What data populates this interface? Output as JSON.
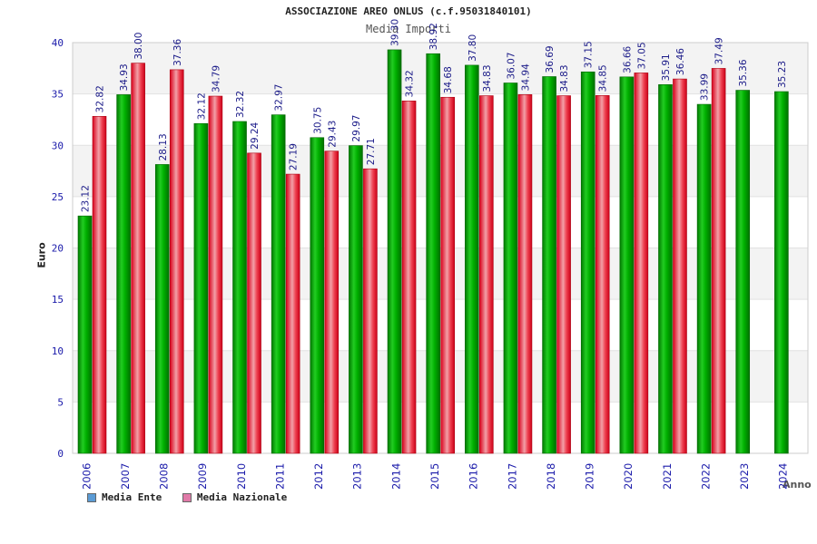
{
  "chart_data": {
    "type": "bar",
    "title": "ASSOCIAZIONE AREO ONLUS (c.f.95031840101)",
    "subtitle": "Media Importi",
    "xlabel": "Anno",
    "ylabel": "Euro",
    "ylim": [
      0,
      40
    ],
    "yticks": [
      "0",
      "5",
      "10",
      "15",
      "20",
      "25",
      "30",
      "35",
      "40"
    ],
    "grid": true,
    "legend_position": "bottom-left",
    "categories": [
      "2006",
      "2007",
      "2008",
      "2009",
      "2010",
      "2011",
      "2012",
      "2013",
      "2014",
      "2015",
      "2016",
      "2017",
      "2018",
      "2019",
      "2020",
      "2021",
      "2022",
      "2023",
      "2024"
    ],
    "series": [
      {
        "name": "Media Ente",
        "color": "#00aa00",
        "legend_color": "#5b9bd5",
        "values": [
          23.12,
          34.93,
          28.13,
          32.12,
          32.32,
          32.97,
          30.75,
          29.97,
          39.3,
          38.92,
          37.8,
          36.07,
          36.69,
          37.15,
          36.66,
          35.91,
          33.99,
          35.36,
          35.23
        ],
        "labels": [
          "23.12",
          "34.93",
          "28.13",
          "32.12",
          "32.32",
          "32.97",
          "30.75",
          "29.97",
          "39.30",
          "38.92",
          "37.80",
          "36.07",
          "36.69",
          "37.15",
          "36.66",
          "35.91",
          "33.99",
          "35.36",
          "35.23"
        ]
      },
      {
        "name": "Media Nazionale",
        "color": "#ee2233",
        "legend_color": "#e07aa8",
        "values": [
          32.82,
          38.0,
          37.36,
          34.79,
          29.24,
          27.19,
          29.43,
          27.71,
          34.32,
          34.68,
          34.83,
          34.94,
          34.83,
          34.85,
          37.05,
          36.46,
          37.49,
          null,
          null
        ],
        "labels": [
          "32.82",
          "38.00",
          "37.36",
          "34.79",
          "29.24",
          "27.19",
          "29.43",
          "27.71",
          "34.32",
          "34.68",
          "34.83",
          "34.94",
          "34.83",
          "34.85",
          "37.05",
          "36.46",
          "37.49",
          "",
          ""
        ]
      }
    ]
  }
}
